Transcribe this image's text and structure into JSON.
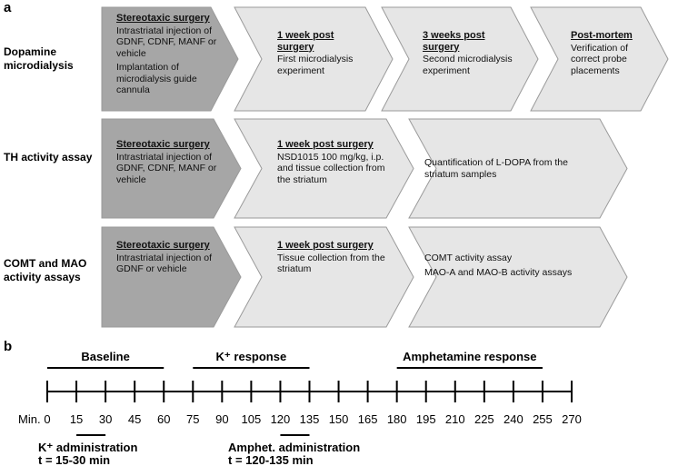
{
  "panel_a": {
    "letter": "a",
    "rows": [
      {
        "label": "Dopamine microdialysis",
        "steps": [
          {
            "title": "Stereotaxic surgery",
            "text": [
              "Intrastriatal injection of GDNF, CDNF, MANF or vehicle",
              "Implantation of microdialysis guide cannula"
            ]
          },
          {
            "title": "1 week post surgery",
            "text": [
              "First microdialysis experiment"
            ]
          },
          {
            "title": "3 weeks post surgery",
            "text": [
              "Second microdialysis experiment"
            ]
          },
          {
            "title": "Post-mortem",
            "text": [
              "Verification of correct probe placements"
            ]
          }
        ]
      },
      {
        "label": "TH activity assay",
        "steps": [
          {
            "title": "Stereotaxic surgery",
            "text": [
              "Intrastriatal injection of GDNF, CDNF, MANF or vehicle"
            ]
          },
          {
            "title": "1 week post surgery",
            "text": [
              "NSD1015 100 mg/kg, i.p. and tissue collection from the striatum"
            ]
          },
          {
            "text": [
              "Quantification of L-DOPA from the striatum samples"
            ]
          }
        ]
      },
      {
        "label": "COMT and MAO activity assays",
        "steps": [
          {
            "title": "Stereotaxic surgery",
            "text": [
              "Intrastriatal injection of GDNF or vehicle"
            ]
          },
          {
            "title": "1 week post surgery",
            "text": [
              "Tissue collection from the striatum"
            ]
          },
          {
            "text": [
              "COMT activity assay",
              "MAO-A and MAO-B activity assays"
            ]
          }
        ]
      }
    ]
  },
  "panel_b": {
    "letter": "b",
    "axis_label": "Min.",
    "ticks": [
      0,
      15,
      30,
      45,
      60,
      75,
      90,
      105,
      120,
      135,
      150,
      165,
      180,
      195,
      210,
      225,
      240,
      255,
      270
    ],
    "periods": [
      {
        "label": "Baseline",
        "start": 0,
        "end": 60
      },
      {
        "label": "K⁺ response",
        "start": 75,
        "end": 135
      },
      {
        "label": "Amphetamine response",
        "start": 180,
        "end": 255
      }
    ],
    "administrations": [
      {
        "label": "K⁺ administration",
        "time": "t = 15-30 min",
        "start": 15,
        "end": 30
      },
      {
        "label": "Amphet. administration",
        "time": "t = 120-135 min",
        "start": 120,
        "end": 135
      }
    ]
  }
}
